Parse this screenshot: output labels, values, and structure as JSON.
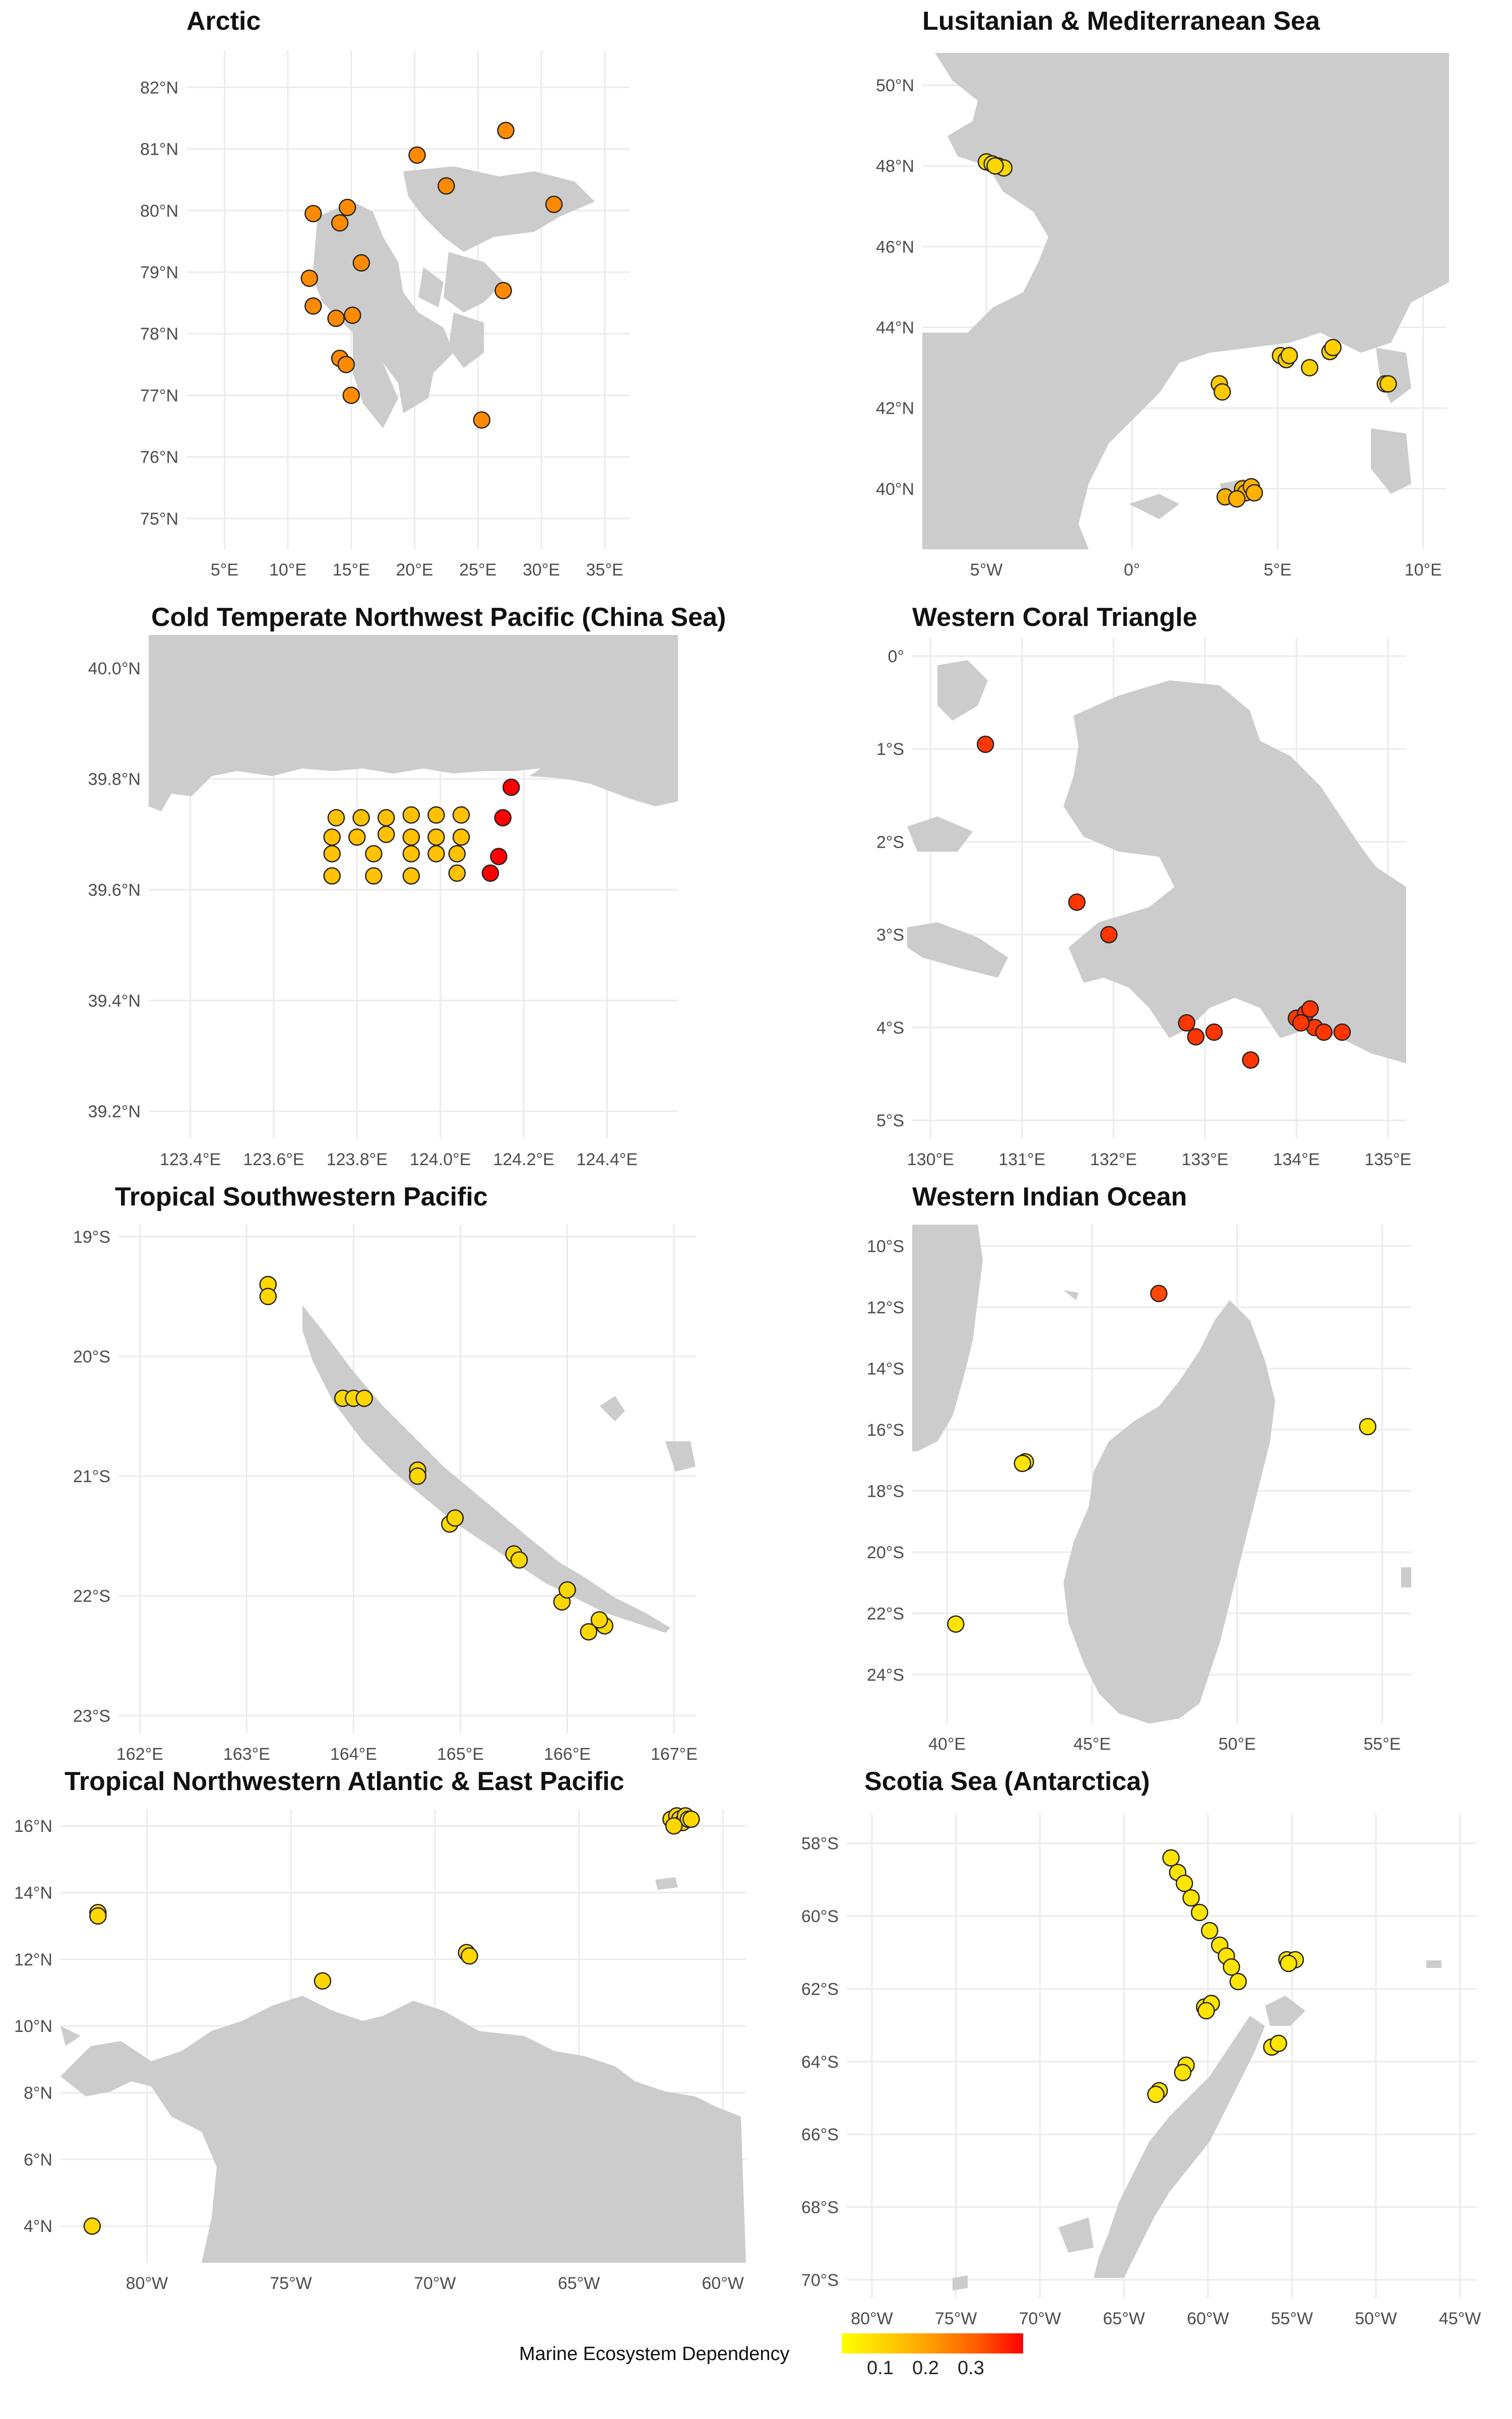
{
  "legend": {
    "title": "Marine Ecosystem Dependency",
    "ticks": [
      "0.1",
      "0.2",
      "0.3"
    ],
    "colors": [
      "#FFFF00",
      "#FFD000",
      "#FF9A00",
      "#FF5A00",
      "#FF0000"
    ]
  },
  "panels": [
    {
      "title": "Arctic",
      "xticks": [
        "5°E",
        "10°E",
        "15°E",
        "20°E",
        "25°E",
        "30°E",
        "35°E"
      ],
      "yticks": [
        "82°N",
        "81°N",
        "80°N",
        "79°N",
        "78°N",
        "77°N",
        "76°N",
        "75°N"
      ],
      "points": [
        [
          20.2,
          80.9,
          0.22
        ],
        [
          27.2,
          81.3,
          0.22
        ],
        [
          22.5,
          80.4,
          0.22
        ],
        [
          31,
          80.1,
          0.22
        ],
        [
          12,
          79.95,
          0.22
        ],
        [
          14.7,
          80.05,
          0.22
        ],
        [
          14.1,
          79.8,
          0.22
        ],
        [
          15.8,
          79.15,
          0.22
        ],
        [
          11.7,
          78.9,
          0.22
        ],
        [
          12,
          78.45,
          0.22
        ],
        [
          13.8,
          78.25,
          0.22
        ],
        [
          15.1,
          78.3,
          0.22
        ],
        [
          27,
          78.7,
          0.22
        ],
        [
          14.1,
          77.6,
          0.22
        ],
        [
          14.6,
          77.5,
          0.22
        ],
        [
          15,
          77,
          0.22
        ],
        [
          25.3,
          76.6,
          0.22
        ]
      ]
    },
    {
      "title": "Lusitanian & Mediterranean Sea",
      "xticks": [
        "5°W",
        "0°",
        "5°E",
        "10°E"
      ],
      "yticks": [
        "50°N",
        "48°N",
        "46°N",
        "44°N",
        "42°N",
        "40°N"
      ],
      "points": [
        [
          -5,
          48.1,
          0.12
        ],
        [
          -4.8,
          48.05,
          0.12
        ],
        [
          -4.6,
          48,
          0.12
        ],
        [
          -4.4,
          47.95,
          0.12
        ],
        [
          -4.7,
          48.0,
          0.12
        ],
        [
          3,
          42.6,
          0.14
        ],
        [
          3.1,
          42.4,
          0.14
        ],
        [
          5.1,
          43.3,
          0.13
        ],
        [
          5.3,
          43.2,
          0.13
        ],
        [
          5.4,
          43.3,
          0.13
        ],
        [
          6.1,
          43,
          0.13
        ],
        [
          6.8,
          43.4,
          0.13
        ],
        [
          6.9,
          43.5,
          0.13
        ],
        [
          8.7,
          42.6,
          0.13
        ],
        [
          8.8,
          42.6,
          0.13
        ],
        [
          3.2,
          39.8,
          0.17
        ],
        [
          3.8,
          40,
          0.17
        ],
        [
          3.9,
          39.9,
          0.17
        ],
        [
          4.1,
          40.05,
          0.17
        ],
        [
          4.2,
          39.9,
          0.17
        ],
        [
          3.6,
          39.75,
          0.17
        ]
      ]
    },
    {
      "title": "Cold Temperate Northwest Pacific (China Sea)",
      "xticks": [
        "123.4°E",
        "123.6°E",
        "123.8°E",
        "124.0°E",
        "124.2°E",
        "124.4°E"
      ],
      "yticks": [
        "40.0°N",
        "39.8°N",
        "39.6°N",
        "39.4°N",
        "39.2°N"
      ],
      "points": [
        [
          123.75,
          39.73,
          0.15
        ],
        [
          123.81,
          39.73,
          0.15
        ],
        [
          123.87,
          39.73,
          0.15
        ],
        [
          123.93,
          39.735,
          0.15
        ],
        [
          123.99,
          39.735,
          0.15
        ],
        [
          124.05,
          39.735,
          0.15
        ],
        [
          123.74,
          39.695,
          0.15
        ],
        [
          123.8,
          39.695,
          0.15
        ],
        [
          123.87,
          39.7,
          0.15
        ],
        [
          123.93,
          39.695,
          0.15
        ],
        [
          123.99,
          39.695,
          0.15
        ],
        [
          124.05,
          39.695,
          0.15
        ],
        [
          123.74,
          39.665,
          0.15
        ],
        [
          123.84,
          39.665,
          0.15
        ],
        [
          123.93,
          39.665,
          0.15
        ],
        [
          123.99,
          39.665,
          0.15
        ],
        [
          124.04,
          39.665,
          0.15
        ],
        [
          123.74,
          39.625,
          0.15
        ],
        [
          123.84,
          39.625,
          0.15
        ],
        [
          123.93,
          39.625,
          0.15
        ],
        [
          124.04,
          39.63,
          0.15
        ],
        [
          124.17,
          39.785,
          0.38
        ],
        [
          124.15,
          39.73,
          0.38
        ],
        [
          124.14,
          39.66,
          0.38
        ],
        [
          124.12,
          39.63,
          0.38
        ]
      ]
    },
    {
      "title": "Western Coral Triangle",
      "xticks": [
        "130°E",
        "131°E",
        "132°E",
        "133°E",
        "134°E",
        "135°E"
      ],
      "yticks": [
        "0°",
        "1°S",
        "2°S",
        "3°S",
        "4°S",
        "5°S"
      ],
      "points": [
        [
          130.6,
          -0.95,
          0.32
        ],
        [
          131.6,
          -2.65,
          0.32
        ],
        [
          131.95,
          -3,
          0.32
        ],
        [
          132.8,
          -3.95,
          0.32
        ],
        [
          132.9,
          -4.1,
          0.32
        ],
        [
          133.1,
          -4.05,
          0.32
        ],
        [
          133.5,
          -4.35,
          0.32
        ],
        [
          134,
          -3.9,
          0.32
        ],
        [
          134.1,
          -3.85,
          0.32
        ],
        [
          134.15,
          -3.8,
          0.32
        ],
        [
          134.2,
          -4,
          0.32
        ],
        [
          134.3,
          -4.05,
          0.32
        ],
        [
          134.5,
          -4.05,
          0.32
        ],
        [
          134.05,
          -3.95,
          0.32
        ]
      ]
    },
    {
      "title": "Tropical Southwestern Pacific",
      "xticks": [
        "162°E",
        "163°E",
        "164°E",
        "165°E",
        "166°E",
        "167°E"
      ],
      "yticks": [
        "19°S",
        "20°S",
        "21°S",
        "22°S",
        "23°S"
      ],
      "points": [
        [
          163.2,
          -19.4,
          0.12
        ],
        [
          163.2,
          -19.5,
          0.12
        ],
        [
          163.9,
          -20.35,
          0.12
        ],
        [
          164,
          -20.35,
          0.12
        ],
        [
          164.1,
          -20.35,
          0.12
        ],
        [
          164.6,
          -20.95,
          0.12
        ],
        [
          164.6,
          -21,
          0.12
        ],
        [
          164.9,
          -21.4,
          0.12
        ],
        [
          164.95,
          -21.35,
          0.12
        ],
        [
          165.5,
          -21.65,
          0.12
        ],
        [
          165.55,
          -21.7,
          0.12
        ],
        [
          165.95,
          -22.05,
          0.12
        ],
        [
          166,
          -21.95,
          0.12
        ],
        [
          166.2,
          -22.3,
          0.12
        ],
        [
          166.35,
          -22.25,
          0.12
        ],
        [
          166.3,
          -22.2,
          0.12
        ]
      ]
    },
    {
      "title": "Western Indian Ocean",
      "xticks": [
        "40°E",
        "45°E",
        "50°E",
        "55°E"
      ],
      "yticks": [
        "10°S",
        "12°S",
        "14°S",
        "16°S",
        "18°S",
        "20°S",
        "22°S",
        "24°S"
      ],
      "points": [
        [
          47.3,
          -11.55,
          0.3
        ],
        [
          54.5,
          -15.9,
          0.1
        ],
        [
          42.7,
          -17.05,
          0.1
        ],
        [
          42.6,
          -17.1,
          0.1
        ],
        [
          40.3,
          -22.35,
          0.1
        ]
      ]
    },
    {
      "title": "Tropical Northwestern Atlantic & East Pacific",
      "xticks": [
        "80°W",
        "75°W",
        "70°W",
        "65°W",
        "60°W"
      ],
      "yticks": [
        "16°N",
        "14°N",
        "12°N",
        "10°N",
        "8°N",
        "6°N",
        "4°N"
      ],
      "points": [
        [
          -81.7,
          13.4,
          0.12
        ],
        [
          -81.7,
          13.3,
          0.12
        ],
        [
          -73.9,
          11.35,
          0.12
        ],
        [
          -68.9,
          12.2,
          0.12
        ],
        [
          -68.8,
          12.1,
          0.12
        ],
        [
          -61.8,
          16.2,
          0.12
        ],
        [
          -61.6,
          16.3,
          0.12
        ],
        [
          -61.5,
          16.2,
          0.12
        ],
        [
          -61.4,
          16.1,
          0.12
        ],
        [
          -61.3,
          16.3,
          0.12
        ],
        [
          -61.2,
          16.2,
          0.12
        ],
        [
          -61.1,
          16.2,
          0.12
        ],
        [
          -61.7,
          16.0,
          0.12
        ],
        [
          -81.9,
          4.0,
          0.12
        ]
      ]
    },
    {
      "title": "Scotia Sea (Antarctica)",
      "xticks": [
        "80°W",
        "75°W",
        "70°W",
        "65°W",
        "60°W",
        "55°W",
        "50°W",
        "45°W"
      ],
      "yticks": [
        "58°S",
        "60°S",
        "62°S",
        "64°S",
        "66°S",
        "68°S",
        "70°S"
      ],
      "points": [
        [
          -62.2,
          -58.4,
          0.1
        ],
        [
          -61.8,
          -58.8,
          0.1
        ],
        [
          -61.4,
          -59.1,
          0.1
        ],
        [
          -61,
          -59.5,
          0.1
        ],
        [
          -60.5,
          -59.9,
          0.1
        ],
        [
          -59.9,
          -60.4,
          0.1
        ],
        [
          -59.3,
          -60.8,
          0.1
        ],
        [
          -58.9,
          -61.1,
          0.1
        ],
        [
          -58.6,
          -61.4,
          0.1
        ],
        [
          -58.2,
          -61.8,
          0.1
        ],
        [
          -55.3,
          -61.2,
          0.1
        ],
        [
          -54.8,
          -61.2,
          0.1
        ],
        [
          -55.2,
          -61.3,
          0.1
        ],
        [
          -60.2,
          -62.5,
          0.1
        ],
        [
          -59.8,
          -62.4,
          0.1
        ],
        [
          -60.1,
          -62.6,
          0.1
        ],
        [
          -56.2,
          -63.6,
          0.1
        ],
        [
          -55.8,
          -63.5,
          0.1
        ],
        [
          -61.3,
          -64.1,
          0.1
        ],
        [
          -61.5,
          -64.3,
          0.1
        ],
        [
          -62.9,
          -64.8,
          0.1
        ],
        [
          -63.1,
          -64.9,
          0.1
        ]
      ]
    }
  ]
}
